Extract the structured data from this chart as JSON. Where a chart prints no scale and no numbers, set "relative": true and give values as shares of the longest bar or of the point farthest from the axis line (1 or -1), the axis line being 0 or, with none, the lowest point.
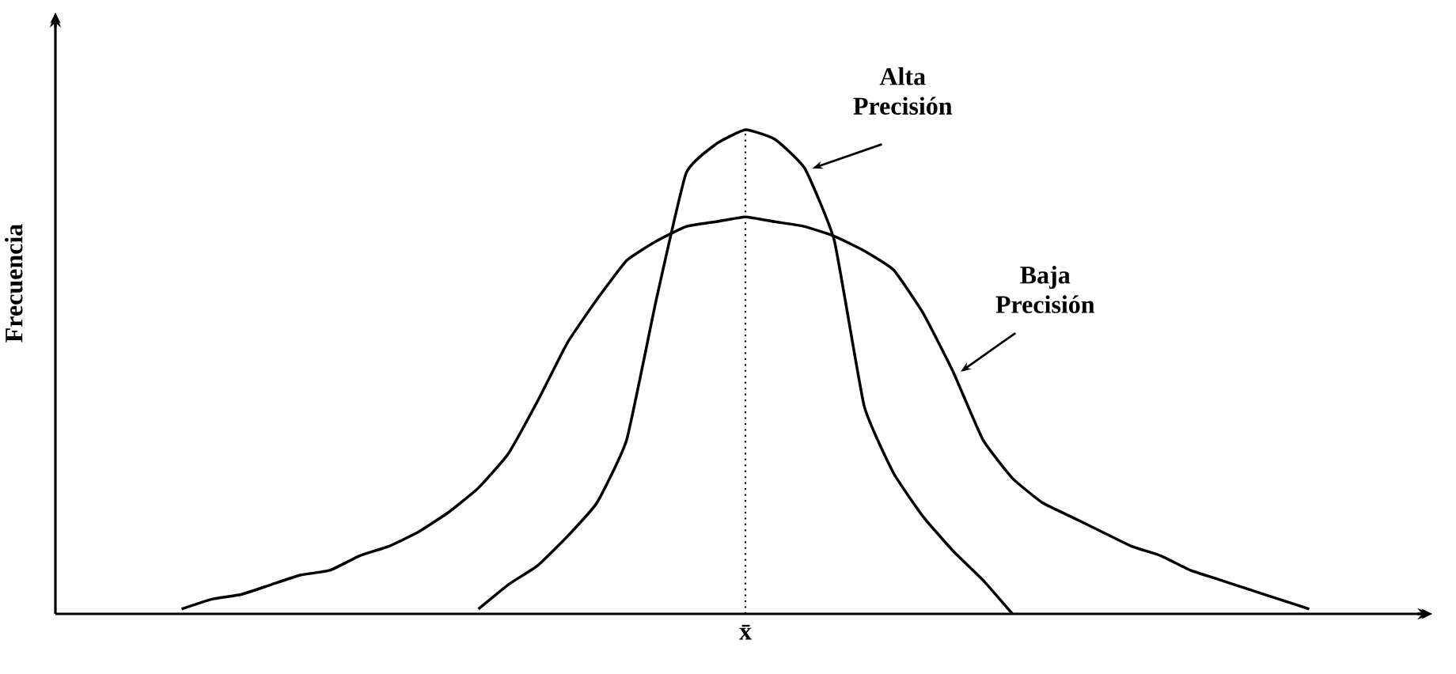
{
  "chart_data": {
    "type": "line",
    "ylabel": "Frecuencia",
    "relative": true,
    "legend": false,
    "grid": false,
    "line_style": "solid",
    "marker": "none",
    "categories": [
      null,
      null,
      null,
      null,
      null,
      null,
      null,
      null,
      null,
      null,
      null,
      null,
      null,
      null,
      null,
      null,
      null,
      null,
      null,
      null,
      null,
      null,
      null,
      null,
      null,
      null,
      null,
      null,
      null,
      null,
      null,
      null,
      null,
      null,
      null,
      null,
      null,
      null,
      null,
      null,
      null
    ],
    "series": [
      {
        "name": "Alta Precisión",
        "color": "#000000",
        "values": [
          null,
          null,
          null,
          null,
          null,
          null,
          null,
          null,
          null,
          null,
          null,
          0.01,
          0.06,
          0.1,
          0.16,
          0.23,
          0.36,
          0.65,
          0.91,
          0.97,
          1,
          0.98,
          0.92,
          0.77,
          0.43,
          0.29,
          0.2,
          0.13,
          0.07,
          0,
          null,
          null,
          null,
          null,
          null,
          null,
          null,
          null,
          null,
          null,
          null
        ]
      },
      {
        "name": "Baja Precisión",
        "color": "#000000",
        "values": [
          null,
          0.01,
          0.03,
          0.04,
          0.06,
          0.08,
          0.09,
          0.12,
          0.14,
          0.17,
          0.21,
          0.26,
          0.33,
          0.44,
          0.56,
          0.65,
          0.73,
          0.77,
          0.8,
          0.81,
          0.82,
          0.81,
          0.8,
          0.78,
          0.75,
          0.71,
          0.62,
          0.5,
          0.36,
          0.28,
          0.23,
          0.2,
          0.17,
          0.14,
          0.12,
          0.09,
          0.07,
          0.05,
          0.03,
          0.01,
          null
        ]
      }
    ],
    "annotations": [
      "x̄"
    ]
  }
}
